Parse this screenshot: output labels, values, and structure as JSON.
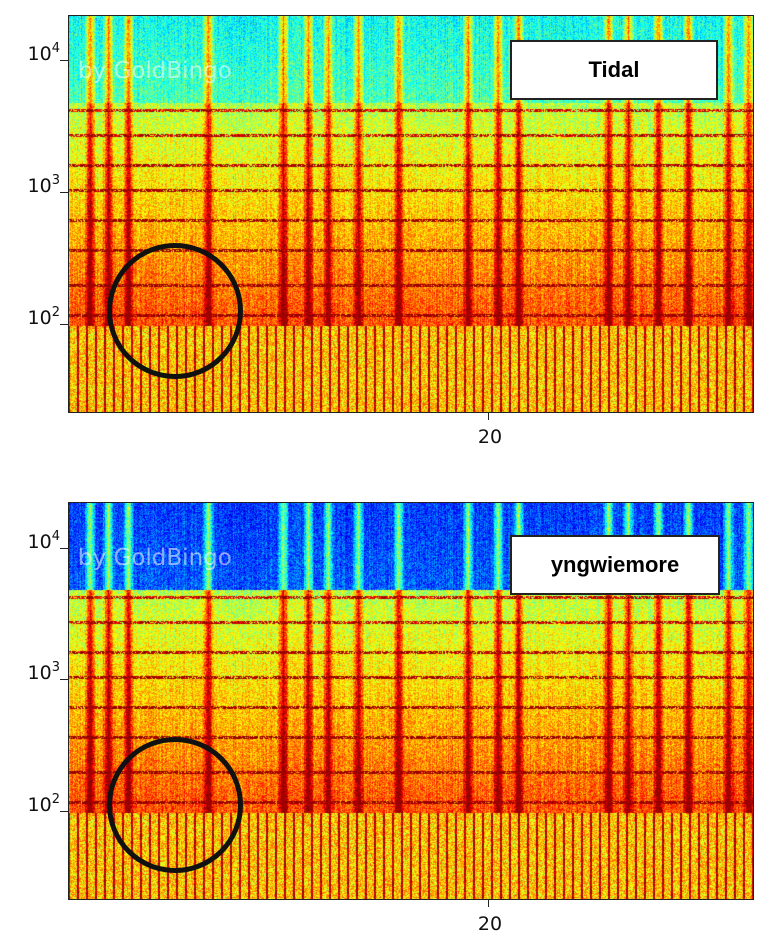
{
  "chart_data": [
    {
      "type": "heatmap",
      "legend": "Tidal",
      "watermark": "by GoldBingo",
      "yscale": "log",
      "yticks": [
        {
          "value": 100,
          "base": "10",
          "exp": "2"
        },
        {
          "value": 1000,
          "base": "10",
          "exp": "3"
        },
        {
          "value": 10000,
          "base": "10",
          "exp": "4"
        }
      ],
      "xticks": [
        "20"
      ],
      "ylim": [
        20,
        22000
      ],
      "xlim": [
        0,
        33
      ],
      "highlight": {
        "x": 5,
        "y": 120
      },
      "noise_floor": "high-frequency band mostly green/cyan"
    },
    {
      "type": "heatmap",
      "legend": "yngwiemore",
      "watermark": "by GoldBingo",
      "yscale": "log",
      "yticks": [
        {
          "value": 100,
          "base": "10",
          "exp": "2"
        },
        {
          "value": 1000,
          "base": "10",
          "exp": "3"
        },
        {
          "value": 10000,
          "base": "10",
          "exp": "4"
        }
      ],
      "xticks": [
        "20"
      ],
      "ylim": [
        20,
        22000
      ],
      "xlim": [
        0,
        33
      ],
      "highlight": {
        "x": 5,
        "y": 120
      },
      "noise_floor": "high-frequency band mostly blue"
    }
  ],
  "colors": {
    "low": "#1a3cc8",
    "mid": "#3fd8a0",
    "high": "#f5e23a",
    "peak": "#b01a08"
  }
}
